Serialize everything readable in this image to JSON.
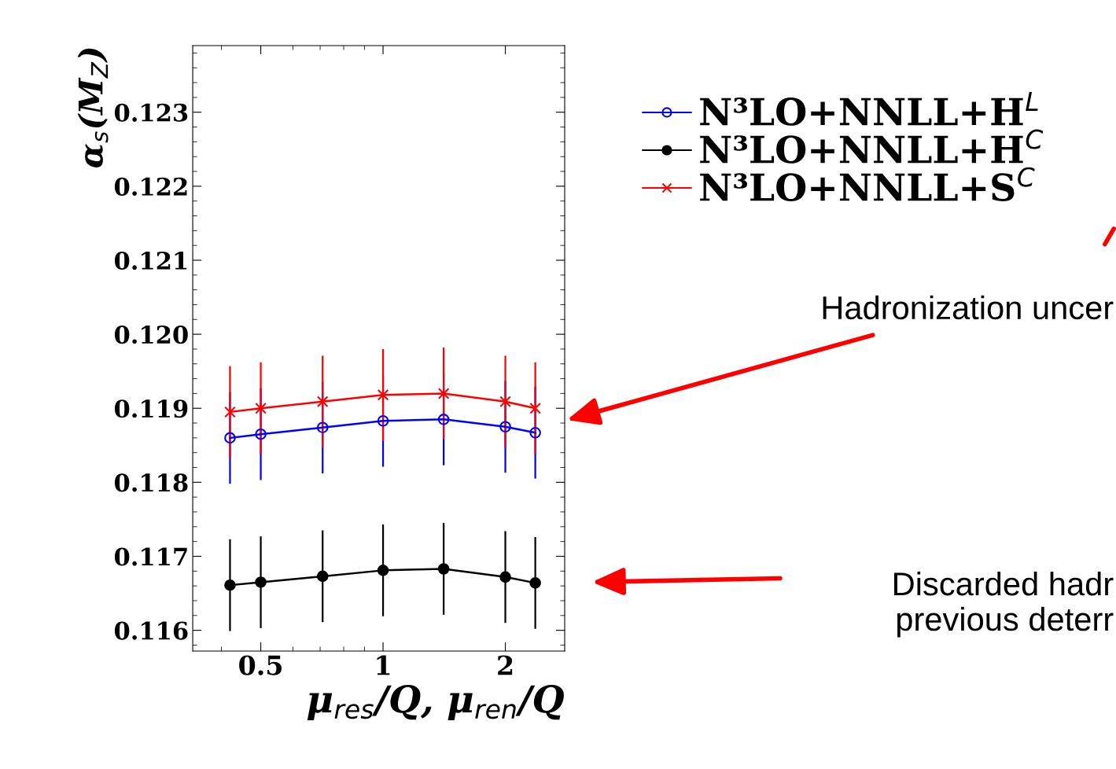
{
  "chart_data": {
    "type": "line",
    "xlabel": "μ$_{res}$/Q, μ$_{ren}$/Q",
    "ylabel": "α$_{s}$(M$_{Z}$)",
    "x": [
      0.42,
      0.5,
      0.71,
      1,
      1.41,
      2,
      2.37
    ],
    "series": [
      {
        "name": "N³LO+NNLL+H$^{L}$",
        "color": "#0000ff",
        "marker": "circle",
        "values": [
          0.1186,
          0.11865,
          0.11874,
          0.11883,
          0.11885,
          0.11875,
          0.11867
        ],
        "errors": [
          0.00062,
          0.00062,
          0.00062,
          0.00062,
          0.00062,
          0.00062,
          0.00062
        ]
      },
      {
        "name": "N³LO+NNLL+H$^{C}$",
        "color": "#000000",
        "marker": "circle",
        "values": [
          0.11661,
          0.11665,
          0.11673,
          0.11681,
          0.11683,
          0.11672,
          0.11664
        ],
        "errors": [
          0.00062,
          0.00062,
          0.00062,
          0.00062,
          0.00062,
          0.00062,
          0.00062
        ]
      },
      {
        "name": "N³LO+NNLL+S$^{C}$",
        "color": "#ff0000",
        "marker": "cross",
        "values": [
          0.11895,
          0.119,
          0.11909,
          0.11918,
          0.1192,
          0.11909,
          0.119
        ],
        "errors": [
          0.00062,
          0.00062,
          0.00062,
          0.00062,
          0.00062,
          0.00062,
          0.00062
        ]
      }
    ],
    "log": "x",
    "xlim": [
      0.34,
      2.8
    ],
    "xticks": [
      0.5,
      1,
      2
    ],
    "ylim": [
      0.11572,
      0.1239
    ],
    "yticks": [
      0.116,
      0.117,
      0.118,
      0.119,
      {
        "value": 0.12,
        "label": "0.120"
      },
      0.121,
      0.122,
      0.123
    ],
    "grid": false,
    "legend": "top right",
    "annotations": [
      "Hadronization uncer",
      "Discarded hadr\nprevious deterr"
    ]
  }
}
